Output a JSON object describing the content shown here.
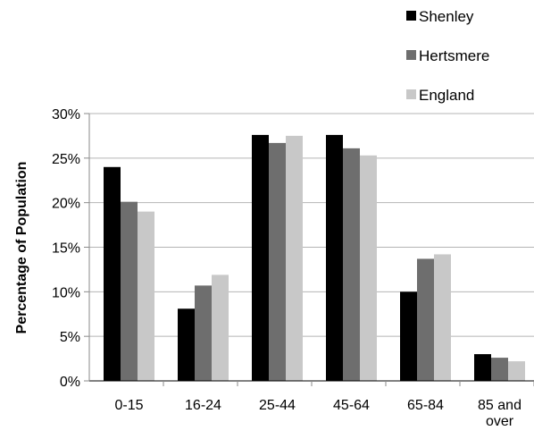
{
  "chart_data": {
    "type": "bar",
    "title": "",
    "xlabel": "",
    "ylabel": "Percentage of Population",
    "ylim": [
      0,
      30
    ],
    "yticks": [
      {
        "value": 0,
        "label": "0%"
      },
      {
        "value": 5,
        "label": "5%"
      },
      {
        "value": 10,
        "label": "10%"
      },
      {
        "value": 15,
        "label": "15%"
      },
      {
        "value": 20,
        "label": "20%"
      },
      {
        "value": 25,
        "label": "25%"
      },
      {
        "value": 30,
        "label": "30%"
      }
    ],
    "categories": [
      "0-15",
      "16-24",
      "25-44",
      "45-64",
      "65-84",
      "85 and over"
    ],
    "category_label_lines": [
      [
        "0-15"
      ],
      [
        "16-24"
      ],
      [
        "25-44"
      ],
      [
        "45-64"
      ],
      [
        "65-84"
      ],
      [
        "85 and",
        "over"
      ]
    ],
    "series": [
      {
        "name": "Shenley",
        "color": "#000000",
        "values": [
          24.0,
          8.1,
          27.6,
          27.6,
          10.0,
          3.0
        ]
      },
      {
        "name": "Hertsmere",
        "color": "#6e6e6e",
        "values": [
          20.1,
          10.7,
          26.7,
          26.1,
          13.7,
          2.6
        ]
      },
      {
        "name": "England",
        "color": "#c8c8c8",
        "values": [
          19.0,
          11.9,
          27.5,
          25.3,
          14.2,
          2.2
        ]
      }
    ],
    "grid": true,
    "legend_position": "top-right"
  }
}
